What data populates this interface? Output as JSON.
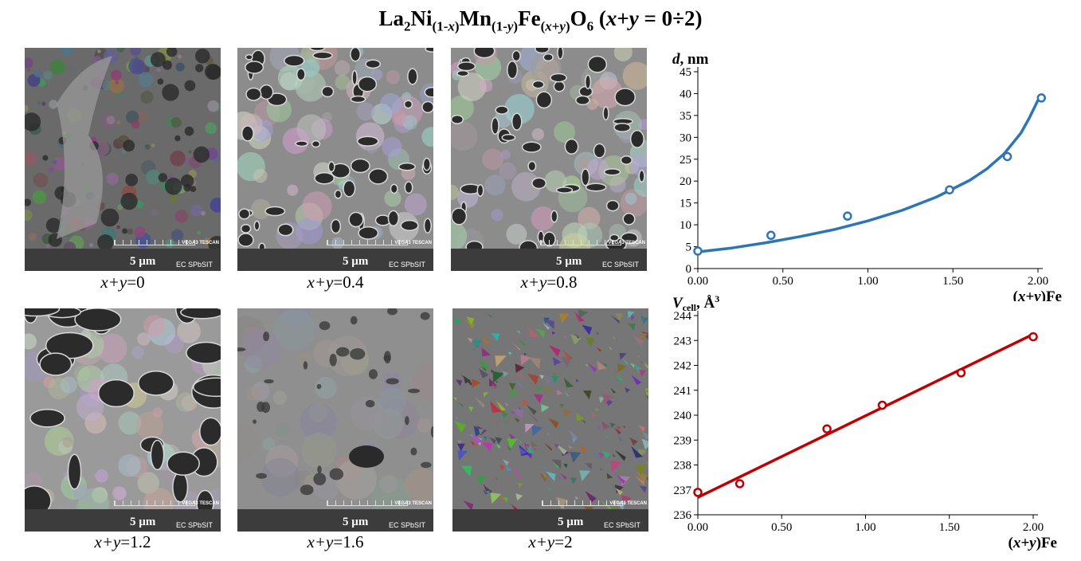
{
  "title": {
    "formula_html": "La<sub>2</sub>Ni<sub>(1-<i>x</i>)</sub>Mn<sub>(1-<i>y</i>)</sub>Fe<sub>(<i>x</i>+<i>y</i>)</sub>O<sub>6</sub> (<i>x</i>+<i>y</i> = 0÷2)"
  },
  "micrographs": [
    {
      "caption_var": "x+y",
      "caption_val": "=0",
      "scale": "5 µm",
      "vendor": "VEGA3 TESCAN",
      "lab": "EC SPbSIT",
      "texture": "granular"
    },
    {
      "caption_var": "x+y",
      "caption_val": "=0.4",
      "scale": "5 µm",
      "vendor": "VEGA3 TESCAN",
      "lab": "EC SPbSIT",
      "texture": "porous"
    },
    {
      "caption_var": "x+y",
      "caption_val": "=0.8",
      "scale": "5 µm",
      "vendor": "VEGA3 TESCAN",
      "lab": "EC SPbSIT",
      "texture": "porous"
    },
    {
      "caption_var": "x+y",
      "caption_val": "=1.2",
      "scale": "5 µm",
      "vendor": "VEGA3 TESCAN",
      "lab": "EC SPbSIT",
      "texture": "porous-large"
    },
    {
      "caption_var": "x+y",
      "caption_val": "=1.6",
      "scale": "5 µm",
      "vendor": "VEGA3 TESCAN",
      "lab": "EC SPbSIT",
      "texture": "smooth"
    },
    {
      "caption_var": "x+y",
      "caption_val": "=2",
      "scale": "5 µm",
      "vendor": "VEGA3 TESCAN",
      "lab": "EC SPbSIT",
      "texture": "flaky"
    }
  ],
  "chart_data": [
    {
      "type": "scatter",
      "ylabel_html": "<tspan font-style=\"italic\">d</tspan>, nm",
      "xlabel_html": "(<tspan font-style=\"italic\">x+y</tspan>)Fe",
      "xlim": [
        0,
        2
      ],
      "ylim": [
        0,
        45
      ],
      "xticks": [
        "0.00",
        "0.50",
        "1.00",
        "1.50",
        "2.00"
      ],
      "yticks": [
        "0",
        "5",
        "10",
        "15",
        "20",
        "25",
        "30",
        "35",
        "40",
        "45"
      ],
      "ytick_step": 5,
      "grid": false,
      "color": "#2e75b6",
      "series": [
        {
          "x": [
            0,
            0.43,
            0.88,
            1.48,
            1.82,
            2.02
          ],
          "y": [
            4,
            7.6,
            12,
            18,
            25.6,
            39
          ]
        }
      ],
      "fit": {
        "kind": "curve",
        "x": [
          0,
          0.2,
          0.4,
          0.6,
          0.8,
          1.0,
          1.2,
          1.4,
          1.6,
          1.7,
          1.8,
          1.9,
          1.95,
          2.0
        ],
        "y": [
          3.8,
          4.7,
          5.9,
          7.3,
          8.9,
          10.9,
          13.3,
          16.3,
          20.2,
          22.8,
          26.2,
          31,
          34.5,
          38.5
        ]
      }
    },
    {
      "type": "scatter",
      "ylabel_html": "<tspan font-style=\"italic\">V</tspan><tspan font-size=\"12\" dy=\"4\">cell</tspan><tspan dy=\"-4\">, Å</tspan><tspan font-size=\"12\" dy=\"-7\">3</tspan>",
      "xlabel_html": "(<tspan font-style=\"italic\">x+y</tspan>)Fe",
      "xlim": [
        0,
        2
      ],
      "ylim": [
        236,
        244
      ],
      "xticks": [
        "0.00",
        "0.50",
        "1.00",
        "1.50",
        "2.00"
      ],
      "yticks": [
        "236",
        "237",
        "238",
        "239",
        "240",
        "241",
        "242",
        "243",
        "244"
      ],
      "ytick_step": 1,
      "grid": false,
      "color": "#c00000",
      "series": [
        {
          "x": [
            0,
            0.25,
            0.77,
            1.1,
            1.57,
            2.0
          ],
          "y": [
            236.9,
            237.25,
            239.45,
            240.4,
            241.7,
            243.15
          ]
        }
      ],
      "fit": {
        "kind": "line",
        "x": [
          0,
          2.0
        ],
        "y": [
          236.7,
          243.25
        ]
      }
    }
  ]
}
